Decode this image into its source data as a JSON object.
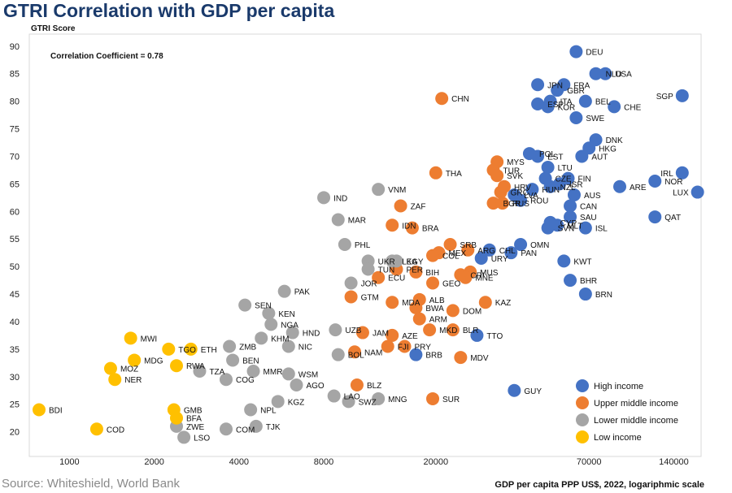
{
  "title": "GTRI Correlation with GDP per capita",
  "source": "Source: Whiteshield, World Bank",
  "chart_data": {
    "type": "scatter",
    "title": "GTRI Correlation with GDP per capita",
    "ylabel": "GTRI Score",
    "xlabel": "GDP per capita PPP US$, 2022, logariphmic scale",
    "x_scale": "log",
    "xlim": [
      780,
      175000
    ],
    "ylim": [
      17,
      91
    ],
    "x_ticks": [
      1000,
      2000,
      4000,
      8000,
      20000,
      70000,
      140000
    ],
    "y_ticks": [
      20,
      25,
      30,
      35,
      40,
      45,
      50,
      55,
      60,
      65,
      70,
      75,
      80,
      85,
      90
    ],
    "annotation": "Correlation Coefficient = 0.78",
    "legend_position": "bottom-right",
    "colors": {
      "High income": "#4472c4",
      "Upper middle income": "#ed7d31",
      "Lower middle income": "#a5a5a5",
      "Low income": "#ffc000"
    },
    "series": [
      {
        "name": "High income",
        "points": [
          {
            "label": "DEU",
            "x": 63000,
            "y": 89
          },
          {
            "label": "NLD",
            "x": 74000,
            "y": 85
          },
          {
            "label": "USA",
            "x": 80000,
            "y": 85
          },
          {
            "label": "JPN",
            "x": 46000,
            "y": 83
          },
          {
            "label": "FRA",
            "x": 57000,
            "y": 83
          },
          {
            "label": "GBR",
            "x": 54000,
            "y": 82
          },
          {
            "label": "BEL",
            "x": 68000,
            "y": 80
          },
          {
            "label": "ITA",
            "x": 51000,
            "y": 80
          },
          {
            "label": "ESP",
            "x": 46000,
            "y": 79.5
          },
          {
            "label": "KOR",
            "x": 50000,
            "y": 79
          },
          {
            "label": "CHE",
            "x": 86000,
            "y": 79
          },
          {
            "label": "SGP",
            "x": 150000,
            "y": 81
          },
          {
            "label": "SWE",
            "x": 63000,
            "y": 77
          },
          {
            "label": "DNK",
            "x": 74000,
            "y": 73
          },
          {
            "label": "HKG",
            "x": 70000,
            "y": 71.5
          },
          {
            "label": "POL",
            "x": 43000,
            "y": 70.5
          },
          {
            "label": "AUT",
            "x": 66000,
            "y": 70
          },
          {
            "label": "EST",
            "x": 46000,
            "y": 70
          },
          {
            "label": "LTU",
            "x": 50000,
            "y": 68
          },
          {
            "label": "IRL",
            "x": 150000,
            "y": 67
          },
          {
            "label": "FIN",
            "x": 59000,
            "y": 66
          },
          {
            "label": "CZE",
            "x": 49000,
            "y": 66
          },
          {
            "label": "ISR",
            "x": 55000,
            "y": 65
          },
          {
            "label": "NZL",
            "x": 51000,
            "y": 64.5
          },
          {
            "label": "HUN",
            "x": 44000,
            "y": 64
          },
          {
            "label": "NOR",
            "x": 120000,
            "y": 65.5
          },
          {
            "label": "LUX",
            "x": 170000,
            "y": 63.5
          },
          {
            "label": "ARE",
            "x": 90000,
            "y": 64.5
          },
          {
            "label": "AUS",
            "x": 62000,
            "y": 63
          },
          {
            "label": "ROU",
            "x": 40000,
            "y": 62
          },
          {
            "label": "LVA",
            "x": 38000,
            "y": 63
          },
          {
            "label": "CAN",
            "x": 60000,
            "y": 61
          },
          {
            "label": "SAU",
            "x": 60000,
            "y": 59
          },
          {
            "label": "QAT",
            "x": 120000,
            "y": 59
          },
          {
            "label": "CYP",
            "x": 51000,
            "y": 58
          },
          {
            "label": "MLT",
            "x": 54000,
            "y": 57.5
          },
          {
            "label": "ISL",
            "x": 68000,
            "y": 57
          },
          {
            "label": "SVN",
            "x": 50000,
            "y": 57
          },
          {
            "label": "CHL",
            "x": 31000,
            "y": 53
          },
          {
            "label": "OMN",
            "x": 40000,
            "y": 54
          },
          {
            "label": "PAN",
            "x": 37000,
            "y": 52.5
          },
          {
            "label": "URY",
            "x": 29000,
            "y": 51.5
          },
          {
            "label": "KWT",
            "x": 57000,
            "y": 51
          },
          {
            "label": "BHR",
            "x": 60000,
            "y": 47.5
          },
          {
            "label": "BRN",
            "x": 68000,
            "y": 45
          },
          {
            "label": "TTO",
            "x": 28000,
            "y": 37.5
          },
          {
            "label": "BRB",
            "x": 17000,
            "y": 34
          },
          {
            "label": "GUY",
            "x": 38000,
            "y": 27.5
          }
        ]
      },
      {
        "name": "Upper middle income",
        "points": [
          {
            "label": "CHN",
            "x": 21000,
            "y": 80.5
          },
          {
            "label": "MYS",
            "x": 33000,
            "y": 69
          },
          {
            "label": "TUR",
            "x": 32000,
            "y": 67.5
          },
          {
            "label": "SVK",
            "x": 33000,
            "y": 66.5
          },
          {
            "label": "THA",
            "x": 20000,
            "y": 67
          },
          {
            "label": "GRC",
            "x": 34000,
            "y": 63.5
          },
          {
            "label": "HRV",
            "x": 35000,
            "y": 64.5
          },
          {
            "label": "BGR",
            "x": 32000,
            "y": 61.5
          },
          {
            "label": "RUS",
            "x": 34500,
            "y": 61.5
          },
          {
            "label": "ZAF",
            "x": 15000,
            "y": 61
          },
          {
            "label": "IDN",
            "x": 14000,
            "y": 57.5
          },
          {
            "label": "BRA",
            "x": 16500,
            "y": 57
          },
          {
            "label": "ARG",
            "x": 26000,
            "y": 53
          },
          {
            "label": "SRB",
            "x": 22500,
            "y": 54
          },
          {
            "label": "MEX",
            "x": 20500,
            "y": 52.5
          },
          {
            "label": "COL",
            "x": 19500,
            "y": 52
          },
          {
            "label": "BIH",
            "x": 17000,
            "y": 49
          },
          {
            "label": "PER",
            "x": 14500,
            "y": 49.5
          },
          {
            "label": "ECU",
            "x": 12500,
            "y": 48
          },
          {
            "label": "MUS",
            "x": 26500,
            "y": 49
          },
          {
            "label": "CRI",
            "x": 24500,
            "y": 48.5
          },
          {
            "label": "MNE",
            "x": 25500,
            "y": 48
          },
          {
            "label": "GEO",
            "x": 19500,
            "y": 47
          },
          {
            "label": "GTM",
            "x": 10000,
            "y": 44.5
          },
          {
            "label": "MDA",
            "x": 14000,
            "y": 43.5
          },
          {
            "label": "ALB",
            "x": 17500,
            "y": 44
          },
          {
            "label": "KAZ",
            "x": 30000,
            "y": 43.5
          },
          {
            "label": "DOM",
            "x": 23000,
            "y": 42
          },
          {
            "label": "BWA",
            "x": 17000,
            "y": 42.5
          },
          {
            "label": "ARM",
            "x": 17500,
            "y": 40.5
          },
          {
            "label": "JAM",
            "x": 11000,
            "y": 38
          },
          {
            "label": "AZE",
            "x": 14000,
            "y": 37.5
          },
          {
            "label": "MKD",
            "x": 19000,
            "y": 38.5
          },
          {
            "label": "BLR",
            "x": 23000,
            "y": 38.5
          },
          {
            "label": "FJI",
            "x": 13500,
            "y": 35.5
          },
          {
            "label": "NAM",
            "x": 10300,
            "y": 34.5
          },
          {
            "label": "PRY",
            "x": 15500,
            "y": 35.5
          },
          {
            "label": "MDV",
            "x": 24500,
            "y": 33.5
          },
          {
            "label": "BLZ",
            "x": 10500,
            "y": 28.5
          },
          {
            "label": "SUR",
            "x": 19500,
            "y": 26
          }
        ]
      },
      {
        "name": "Lower middle income",
        "points": [
          {
            "label": "IND",
            "x": 8000,
            "y": 62.5
          },
          {
            "label": "VNM",
            "x": 12500,
            "y": 64
          },
          {
            "label": "MAR",
            "x": 9000,
            "y": 58.5
          },
          {
            "label": "PHL",
            "x": 9500,
            "y": 54
          },
          {
            "label": "LKA",
            "x": 14000,
            "y": 51
          },
          {
            "label": "EGY",
            "x": 14500,
            "y": 51
          },
          {
            "label": "UKR",
            "x": 11500,
            "y": 51
          },
          {
            "label": "TUN",
            "x": 11500,
            "y": 49.5
          },
          {
            "label": "JOR",
            "x": 10000,
            "y": 47
          },
          {
            "label": "PAK",
            "x": 5800,
            "y": 45.5
          },
          {
            "label": "SEN",
            "x": 4200,
            "y": 43
          },
          {
            "label": "KEN",
            "x": 5100,
            "y": 41.5
          },
          {
            "label": "NGA",
            "x": 5200,
            "y": 39.5
          },
          {
            "label": "UZB",
            "x": 8800,
            "y": 38.5
          },
          {
            "label": "HND",
            "x": 6200,
            "y": 38
          },
          {
            "label": "KHM",
            "x": 4800,
            "y": 37
          },
          {
            "label": "NIC",
            "x": 6000,
            "y": 35.5
          },
          {
            "label": "ZMB",
            "x": 3700,
            "y": 35.5
          },
          {
            "label": "BEN",
            "x": 3800,
            "y": 33
          },
          {
            "label": "BOL",
            "x": 9000,
            "y": 34
          },
          {
            "label": "TZA",
            "x": 2900,
            "y": 31
          },
          {
            "label": "MMR",
            "x": 4500,
            "y": 31
          },
          {
            "label": "WSM",
            "x": 6000,
            "y": 30.5
          },
          {
            "label": "COG",
            "x": 3600,
            "y": 29.5
          },
          {
            "label": "LAO",
            "x": 8700,
            "y": 26.5
          },
          {
            "label": "AGO",
            "x": 6400,
            "y": 28.5
          },
          {
            "label": "KGZ",
            "x": 5500,
            "y": 25.5
          },
          {
            "label": "SWZ",
            "x": 9800,
            "y": 25.5
          },
          {
            "label": "MNG",
            "x": 12500,
            "y": 26
          },
          {
            "label": "NPL",
            "x": 4400,
            "y": 24
          },
          {
            "label": "ZWE",
            "x": 2400,
            "y": 21
          },
          {
            "label": "LSO",
            "x": 2550,
            "y": 19
          },
          {
            "label": "COM",
            "x": 3600,
            "y": 20.5
          },
          {
            "label": "TJK",
            "x": 4600,
            "y": 21
          }
        ]
      },
      {
        "name": "Low income",
        "points": [
          {
            "label": "MWI",
            "x": 1650,
            "y": 37
          },
          {
            "label": "ETH",
            "x": 2700,
            "y": 35
          },
          {
            "label": "TGO",
            "x": 2250,
            "y": 35
          },
          {
            "label": "MDG",
            "x": 1700,
            "y": 33
          },
          {
            "label": "MOZ",
            "x": 1400,
            "y": 31.5
          },
          {
            "label": "RWA",
            "x": 2400,
            "y": 32
          },
          {
            "label": "NER",
            "x": 1450,
            "y": 29.5
          },
          {
            "label": "GMB",
            "x": 2350,
            "y": 24
          },
          {
            "label": "BFA",
            "x": 2400,
            "y": 22.5
          },
          {
            "label": "BDI",
            "x": 780,
            "y": 24
          },
          {
            "label": "COD",
            "x": 1250,
            "y": 20.5
          }
        ]
      }
    ]
  }
}
